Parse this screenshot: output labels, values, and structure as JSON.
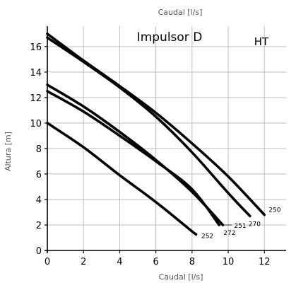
{
  "chart_data": {
    "type": "line",
    "title": "Impulsor D",
    "corner_label": "HT",
    "top_label": "Caudal [l/s]",
    "xlabel": "Caudal [l/s]",
    "ylabel": "Altura [m]",
    "xlim": [
      0,
      13.2
    ],
    "ylim": [
      0,
      17.6
    ],
    "xticks": [
      0,
      2,
      4,
      6,
      8,
      10,
      12
    ],
    "yticks": [
      0,
      2,
      4,
      6,
      8,
      10,
      12,
      14,
      16
    ],
    "grid": true,
    "series": [
      {
        "name": "250",
        "x": [
          0,
          2,
          4,
          6,
          8,
          10,
          12.0
        ],
        "y": [
          17.0,
          14.9,
          12.9,
          10.8,
          8.4,
          5.8,
          2.8
        ]
      },
      {
        "name": "270",
        "x": [
          0,
          2,
          4,
          6,
          8,
          10,
          11.2
        ],
        "y": [
          16.7,
          14.8,
          12.8,
          10.5,
          7.7,
          4.5,
          2.7
        ]
      },
      {
        "name": "251",
        "x": [
          0,
          2,
          4,
          6,
          8,
          9.7
        ],
        "y": [
          13.0,
          11.3,
          9.3,
          7.1,
          4.6,
          2.0
        ]
      },
      {
        "name": "272",
        "x": [
          0,
          2,
          4,
          6,
          8,
          9.5
        ],
        "y": [
          12.5,
          10.9,
          9.0,
          7.0,
          4.8,
          2.0
        ]
      },
      {
        "name": "252",
        "x": [
          0,
          2,
          4,
          6,
          8,
          8.2
        ],
        "y": [
          10.0,
          8.1,
          5.9,
          3.8,
          1.5,
          1.3
        ]
      }
    ]
  }
}
